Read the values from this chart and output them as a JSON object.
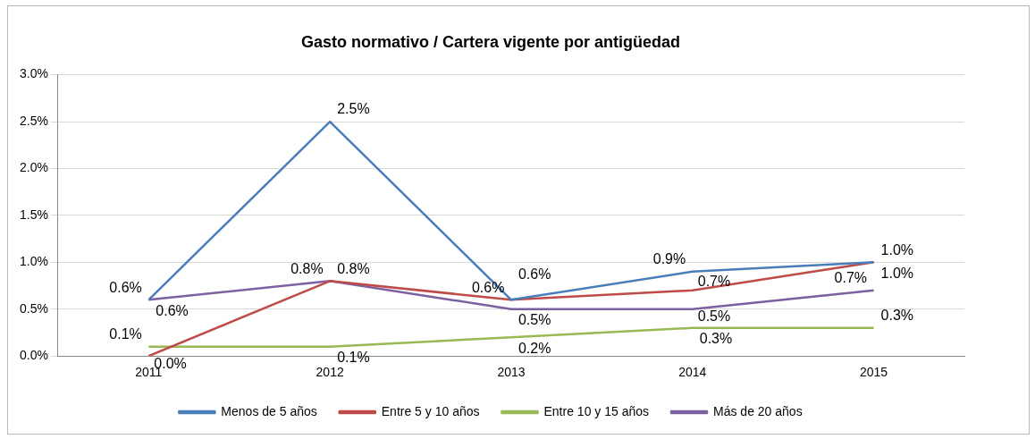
{
  "chart_data": {
    "type": "line",
    "title": "Gasto normativo / Cartera vigente por antigüedad",
    "categories": [
      "2011",
      "2012",
      "2013",
      "2014",
      "2015"
    ],
    "series": [
      {
        "name": "Menos de 5 años",
        "color": "#4a7ebb",
        "values": [
          0.6,
          2.5,
          0.6,
          0.9,
          1.0
        ],
        "value_labels": [
          "0.6%",
          "2.5%",
          "0.6%",
          "0.9%",
          "1.0%"
        ]
      },
      {
        "name": "Entre 5 y 10 años",
        "color": "#be4b48",
        "values": [
          0.0,
          0.8,
          0.6,
          0.7,
          1.0
        ],
        "value_labels": [
          "0.0%",
          "0.8%",
          "0.6%",
          "0.7%",
          "1.0%"
        ]
      },
      {
        "name": "Entre 10 y 15 años",
        "color": "#98b954",
        "values": [
          0.1,
          0.1,
          0.2,
          0.3,
          0.3
        ],
        "value_labels": [
          "0.1%",
          "0.1%",
          "0.2%",
          "0.3%",
          "0.3%"
        ]
      },
      {
        "name": "Más de 20 años",
        "color": "#7d60a0",
        "values": [
          0.6,
          0.8,
          0.5,
          0.5,
          0.7
        ],
        "value_labels": [
          "0.6%",
          "0.8%",
          "0.5%",
          "0.5%",
          "0.7%"
        ]
      }
    ],
    "ylim": [
      0,
      3
    ],
    "yticks": [
      {
        "value": 0,
        "label": "0.0%"
      },
      {
        "value": 0.5,
        "label": "0.5%"
      },
      {
        "value": 1,
        "label": "1.0%"
      },
      {
        "value": 1.5,
        "label": "1.5%"
      },
      {
        "value": 2,
        "label": "2.0%"
      },
      {
        "value": 2.5,
        "label": "2.5%"
      },
      {
        "value": 3,
        "label": "3.0%"
      }
    ],
    "grid": "y",
    "legend": "bottom",
    "marker": "none",
    "line_style": "solid"
  }
}
